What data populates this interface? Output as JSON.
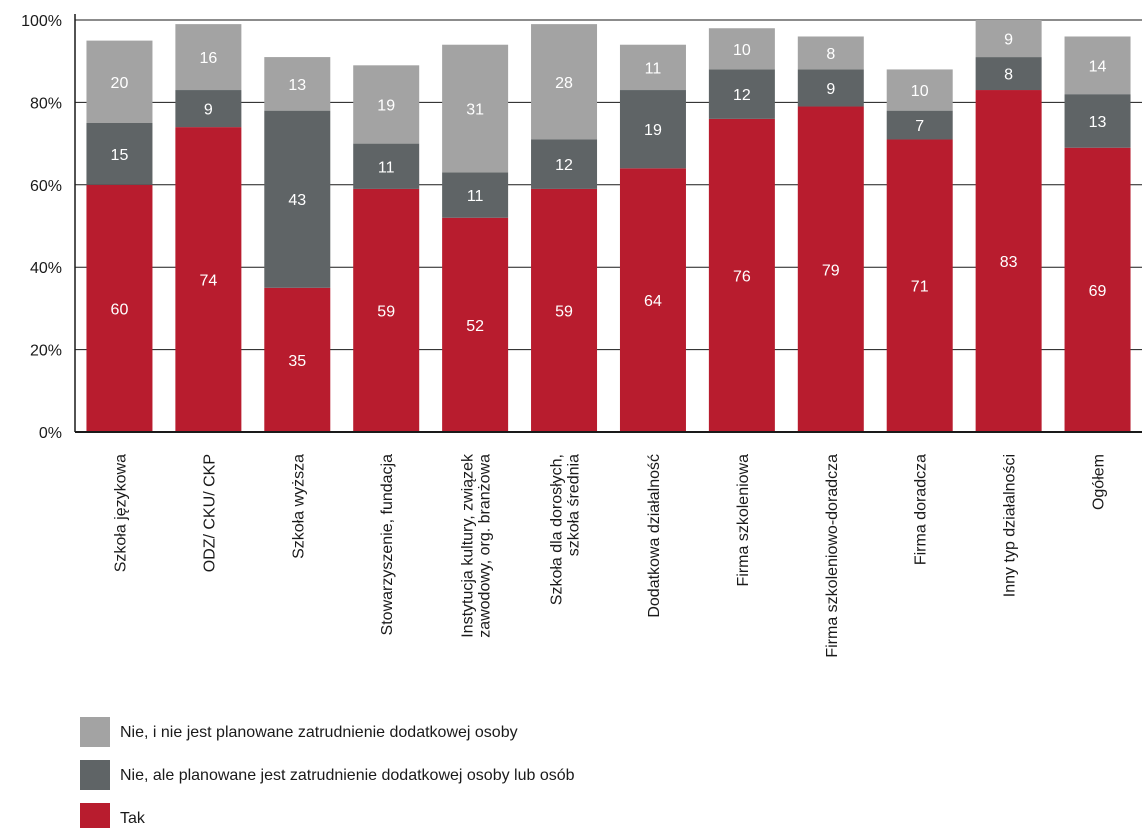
{
  "chart_data": {
    "type": "bar",
    "stacked": true,
    "categories": [
      [
        "Szkoła językowa"
      ],
      [
        "ODZ/ CKU/ CKP"
      ],
      [
        "Szkoła wyższa"
      ],
      [
        "Stowarzyszenie, fundacja"
      ],
      [
        "Instytucja kultury, związek",
        "zawodowy, org. branżowa"
      ],
      [
        "Szkoła dla dorosłych,",
        "szkoła średnia"
      ],
      [
        "Dodatkowa działalność"
      ],
      [
        "Firma szkoleniowa"
      ],
      [
        "Firma szkoleniowo-doradcza"
      ],
      [
        "Firma doradcza"
      ],
      [
        "Inny typ działalności"
      ],
      [
        "Ogółem"
      ]
    ],
    "series": [
      {
        "name": "Tak",
        "color": "#b81c2e",
        "values": [
          60,
          74,
          35,
          59,
          52,
          59,
          64,
          76,
          79,
          71,
          83,
          69
        ]
      },
      {
        "name": "Nie, ale planowane jest zatrudnienie dodatkowej osoby lub osób",
        "color": "#5f6466",
        "values": [
          15,
          9,
          43,
          11,
          11,
          12,
          19,
          12,
          9,
          7,
          8,
          13
        ]
      },
      {
        "name": "Nie, i nie jest planowane zatrudnienie dodatkowej osoby",
        "color": "#a3a3a3",
        "values": [
          20,
          16,
          13,
          19,
          31,
          28,
          11,
          10,
          8,
          10,
          9,
          14
        ]
      }
    ],
    "legend_order": [
      2,
      1,
      0
    ],
    "y_ticks": [
      "0%",
      "20%",
      "40%",
      "60%",
      "80%",
      "100%"
    ],
    "ylim": [
      0,
      100
    ],
    "grid": true,
    "legend_position": "bottom-left"
  }
}
